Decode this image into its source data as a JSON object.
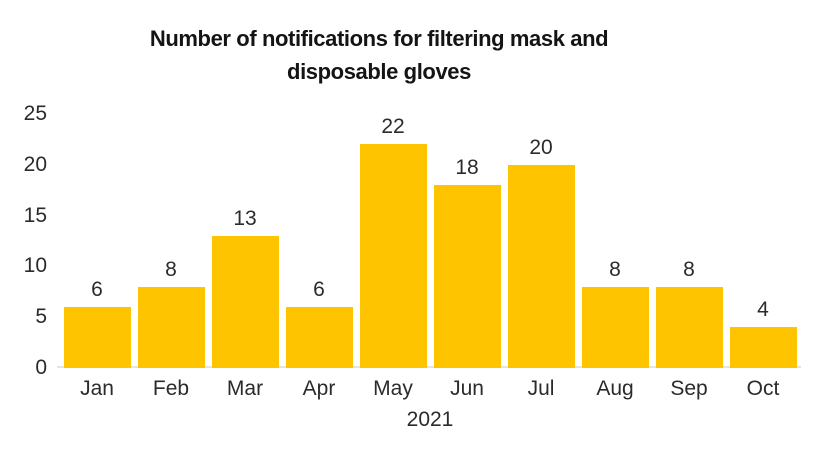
{
  "chart_data": {
    "type": "bar",
    "title": "Number of notifications for filtering mask and disposable gloves",
    "title_lines": [
      "Number of notifications for filtering mask and",
      "disposable gloves"
    ],
    "categories": [
      "Jan",
      "Feb",
      "Mar",
      "Apr",
      "May",
      "Jun",
      "Jul",
      "Aug",
      "Sep",
      "Oct"
    ],
    "values": [
      6,
      8,
      13,
      6,
      22,
      18,
      20,
      8,
      8,
      4
    ],
    "data_labels": [
      6,
      8,
      13,
      6,
      22,
      18,
      20,
      8,
      8,
      4
    ],
    "xlabel": "2021",
    "ylabel": "",
    "ylim": [
      0,
      25
    ],
    "yticks": [
      0,
      5,
      10,
      15,
      20,
      25
    ],
    "grid": false,
    "legend": "none",
    "colors": {
      "bar": "#FFC400",
      "axis_line": "#EAE2E1",
      "label_text": "#2B2B2B",
      "title_text": "#141414",
      "background": "#FFFFFF"
    }
  }
}
